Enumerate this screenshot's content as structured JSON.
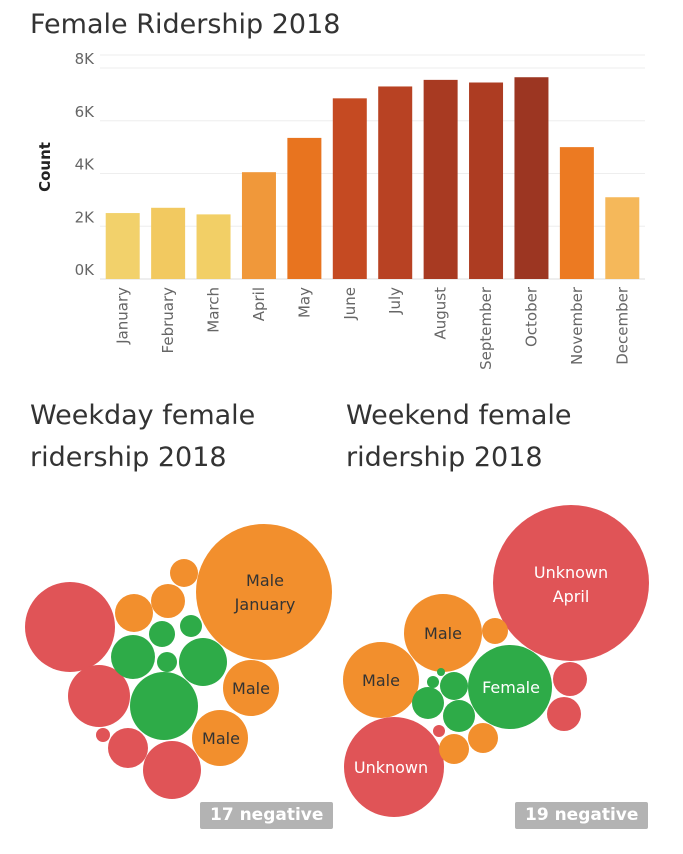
{
  "titles": {
    "main": "Female Ridership 2018",
    "weekday": "Weekday female ridership 2018",
    "weekend": "Weekend female ridership 2018"
  },
  "badges": {
    "weekday": "17 negative",
    "weekend": "19 negative"
  },
  "chart_data": [
    {
      "type": "bar",
      "title": "Female Ridership 2018",
      "xlabel": "",
      "ylabel": "Count",
      "categories": [
        "January",
        "February",
        "March",
        "April",
        "May",
        "June",
        "July",
        "August",
        "September",
        "October",
        "November",
        "December"
      ],
      "values": [
        2500,
        2700,
        2450,
        4050,
        5350,
        6850,
        7300,
        7550,
        7450,
        7650,
        5000,
        3100
      ],
      "yticks": [
        "0K",
        "2K",
        "4K",
        "6K",
        "8K"
      ],
      "ylim": [
        0,
        8000
      ],
      "grid": true,
      "colors": [
        "#f2d16b",
        "#f2c960",
        "#f2cf66",
        "#f0983a",
        "#e8741f",
        "#c54a22",
        "#b84223",
        "#a83a22",
        "#ad3c22",
        "#9c3622",
        "#ec7a22",
        "#f5b85a"
      ]
    },
    {
      "type": "bubble",
      "title": "Weekday female ridership 2018",
      "labels": [
        "Male January",
        "Male",
        "Male"
      ],
      "legend": "none",
      "palette": {
        "Female": "#2eab48",
        "Male": "#f28f2d",
        "Unknown": "#e05457"
      }
    },
    {
      "type": "bubble",
      "title": "Weekend female ridership 2018",
      "labels": [
        "Unknown April",
        "Male",
        "Male",
        "Female",
        "Unknown"
      ],
      "legend": "none",
      "palette": {
        "Female": "#2eab48",
        "Male": "#f28f2d",
        "Unknown": "#e05457"
      }
    }
  ],
  "bubble_labels": {
    "weekday": {
      "big_line1": "Male",
      "big_line2": "January",
      "right": "Male",
      "bottom": "Male"
    },
    "weekend": {
      "big_line1": "Unknown",
      "big_line2": "April",
      "top": "Male",
      "left": "Male",
      "green": "Female",
      "bottom": "Unknown"
    }
  }
}
